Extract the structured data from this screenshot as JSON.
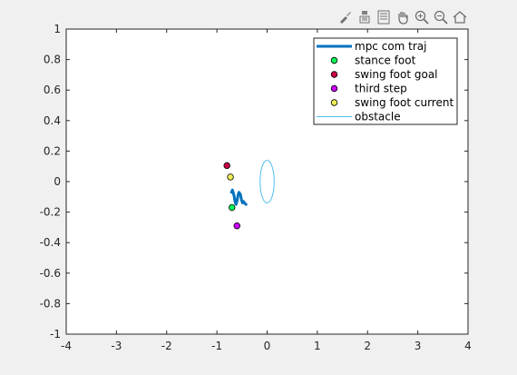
{
  "toolbar": {
    "icons": [
      "brush-icon",
      "data-cursor-icon",
      "legend-toggle-icon",
      "pan-hand-icon",
      "zoom-in-icon",
      "zoom-out-icon",
      "home-icon"
    ]
  },
  "colors": {
    "background": "#f0f0f0",
    "axes": "#ffffff",
    "traj": "#0072bd",
    "obstacle": "#4dbeee"
  },
  "chart_data": {
    "type": "line",
    "title": "",
    "xlabel": "",
    "ylabel": "",
    "xlim": [
      -4,
      4
    ],
    "ylim": [
      -1,
      1
    ],
    "xticks": [
      -4,
      -3,
      -2,
      -1,
      0,
      1,
      2,
      3,
      4
    ],
    "yticks": [
      -1,
      -0.8,
      -0.6,
      -0.4,
      -0.2,
      0,
      0.2,
      0.4,
      0.6,
      0.8,
      1
    ],
    "xtick_labels": [
      "-4",
      "-3",
      "-2",
      "-1",
      "0",
      "1",
      "2",
      "3",
      "4"
    ],
    "ytick_labels": [
      "-1",
      "-0.8",
      "-0.6",
      "-0.4",
      "-0.2",
      "0",
      "0.2",
      "0.4",
      "0.6",
      "0.8",
      "1"
    ],
    "grid": false,
    "legend_position": "top-right",
    "series": [
      {
        "name": "mpc com traj",
        "kind": "line",
        "color": "#0072bd",
        "x": [
          -0.71,
          -0.69,
          -0.66,
          -0.64,
          -0.62,
          -0.6,
          -0.58,
          -0.56,
          -0.53,
          -0.51,
          -0.49,
          -0.47,
          -0.45,
          -0.42
        ],
        "y": [
          -0.07,
          -0.055,
          -0.09,
          -0.13,
          -0.15,
          -0.13,
          -0.09,
          -0.07,
          -0.085,
          -0.12,
          -0.14,
          -0.13,
          -0.14,
          -0.15
        ]
      },
      {
        "name": "stance foot",
        "kind": "marker",
        "color": "#00ff55",
        "x": [
          -0.7
        ],
        "y": [
          -0.17
        ]
      },
      {
        "name": "swing foot goal",
        "kind": "marker",
        "color": "#cc0044",
        "x": [
          -0.8
        ],
        "y": [
          0.105
        ]
      },
      {
        "name": "third step",
        "kind": "marker",
        "color": "#cc00ff",
        "x": [
          -0.6
        ],
        "y": [
          -0.29
        ]
      },
      {
        "name": "swing foot current",
        "kind": "marker",
        "color": "#eeee55",
        "x": [
          -0.73
        ],
        "y": [
          0.03
        ]
      },
      {
        "name": "obstacle",
        "kind": "ellipse",
        "color": "#4dbeee",
        "center": [
          0.0,
          0.0
        ],
        "rx": 0.14,
        "ry": 0.14
      }
    ]
  }
}
